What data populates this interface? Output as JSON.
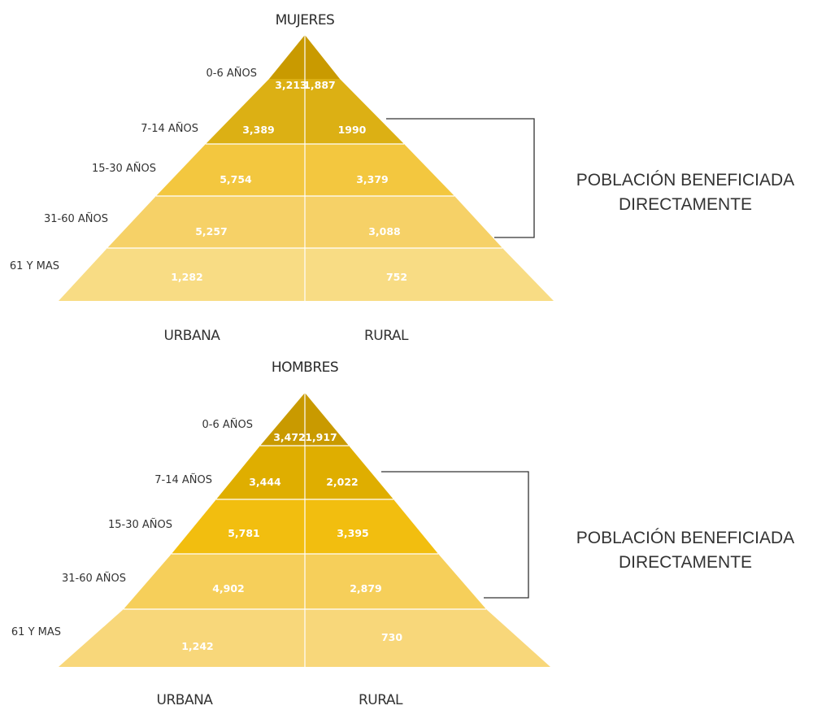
{
  "pyramids": [
    {
      "id": "mujeres",
      "title": "MUJERES",
      "callout": [
        "POBLACIÓN BENEFICIADA",
        "DIRECTAMENTE"
      ],
      "bottom_labels": {
        "left": "URBANA",
        "right": "RURAL"
      },
      "bands": [
        {
          "age": "0-6 AÑOS",
          "urbana": "3,213",
          "rural": "1,887",
          "color": "#c99a00"
        },
        {
          "age": "7-14 AÑOS",
          "urbana": "3,389",
          "rural": "1990",
          "color": "#dcb014"
        },
        {
          "age": "15-30 AÑOS",
          "urbana": "5,754",
          "rural": "3,379",
          "color": "#f3c73f"
        },
        {
          "age": "31-60 AÑOS",
          "urbana": "5,257",
          "rural": "3,088",
          "color": "#f6d167"
        },
        {
          "age": "61 Y MAS",
          "urbana": "1,282",
          "rural": "752",
          "color": "#f8dc84"
        }
      ]
    },
    {
      "id": "hombres",
      "title": "HOMBRES",
      "callout": [
        "POBLACIÓN BENEFICIADA",
        "DIRECTAMENTE"
      ],
      "bottom_labels": {
        "left": "URBANA",
        "right": "RURAL"
      },
      "bands": [
        {
          "age": "0-6 AÑOS",
          "urbana": "3,472",
          "rural": "1,917",
          "color": "#c99a00"
        },
        {
          "age": "7-14 AÑOS",
          "urbana": "3,444",
          "rural": "2,022",
          "color": "#dfae00"
        },
        {
          "age": "15-30 AÑOS",
          "urbana": "5,781",
          "rural": "3,395",
          "color": "#f2be0f"
        },
        {
          "age": "31-60 AÑOS",
          "urbana": "4,902",
          "rural": "2,879",
          "color": "#f6cf5a"
        },
        {
          "age": "61 Y MAS",
          "urbana": "1,242",
          "rural": "730",
          "color": "#f8d77a"
        }
      ]
    }
  ]
}
